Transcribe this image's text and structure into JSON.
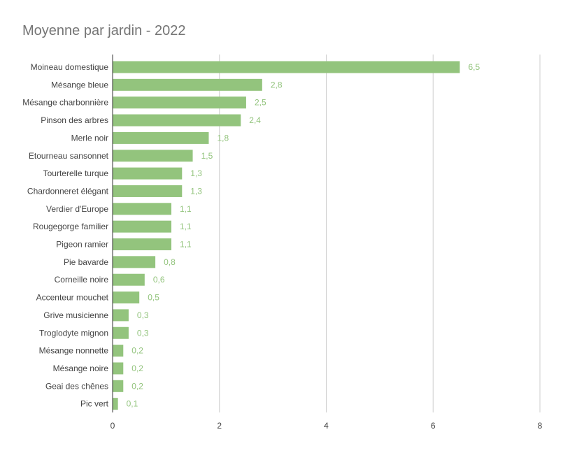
{
  "chart_data": {
    "type": "bar",
    "orientation": "horizontal",
    "title": "Moyenne par jardin - 2022",
    "xlabel": "",
    "ylabel": "",
    "xlim": [
      0,
      8
    ],
    "ticks": [
      0,
      2,
      4,
      6,
      8
    ],
    "grid": true,
    "legend": "none",
    "bar_color": "#93c47d",
    "categories": [
      "Moineau domestique",
      "Mésange bleue",
      "Mésange charbonnière",
      "Pinson des arbres",
      "Merle noir",
      "Etourneau sansonnet",
      "Tourterelle turque",
      "Chardonneret élégant",
      "Verdier d'Europe",
      "Rougegorge familier",
      "Pigeon ramier",
      "Pie bavarde",
      "Corneille noire",
      "Accenteur mouchet",
      "Grive musicienne",
      "Troglodyte mignon",
      "Mésange nonnette",
      "Mésange noire",
      "Geai des chênes",
      "Pic vert"
    ],
    "values": [
      6.5,
      2.8,
      2.5,
      2.4,
      1.8,
      1.5,
      1.3,
      1.3,
      1.1,
      1.1,
      1.1,
      0.8,
      0.6,
      0.5,
      0.3,
      0.3,
      0.2,
      0.2,
      0.2,
      0.1
    ],
    "value_labels": [
      "6,5",
      "2,8",
      "2,5",
      "2,4",
      "1,8",
      "1,5",
      "1,3",
      "1,3",
      "1,1",
      "1,1",
      "1,1",
      "0,8",
      "0,6",
      "0,5",
      "0,3",
      "0,3",
      "0,2",
      "0,2",
      "0,2",
      "0,1"
    ]
  }
}
